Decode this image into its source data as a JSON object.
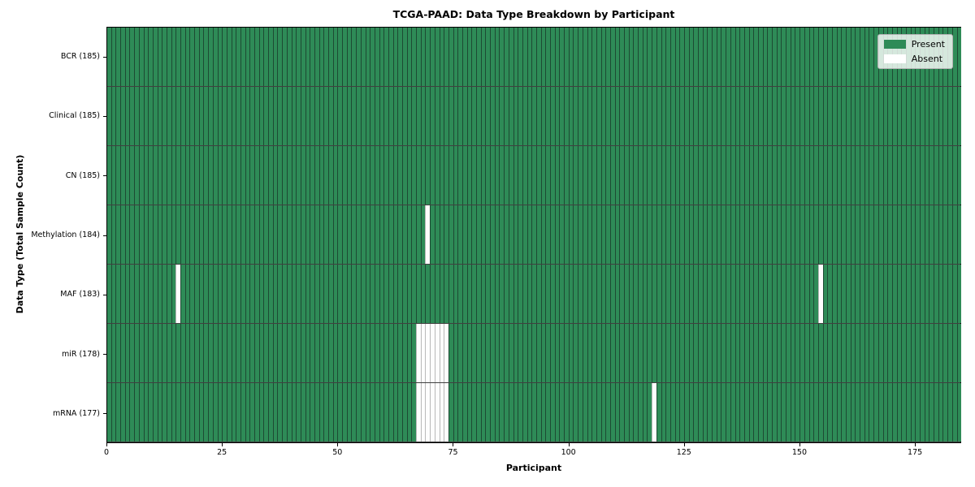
{
  "chart_data": {
    "type": "heatmap",
    "title": "TCGA-PAAD: Data Type Breakdown by Participant",
    "xlabel": "Participant",
    "ylabel": "Data Type (Total Sample Count)",
    "n_participants": 185,
    "x_ticks": [
      0,
      25,
      50,
      75,
      100,
      125,
      150,
      175
    ],
    "xlim": [
      0,
      185
    ],
    "grid": false,
    "legend_position": "upper right",
    "rows": [
      {
        "label": "BCR (185)",
        "data_type": "BCR",
        "present_count": 185,
        "absent_participants": []
      },
      {
        "label": "Clinical (185)",
        "data_type": "Clinical",
        "present_count": 185,
        "absent_participants": []
      },
      {
        "label": "CN (185)",
        "data_type": "CN",
        "present_count": 185,
        "absent_participants": []
      },
      {
        "label": "Methylation (184)",
        "data_type": "Methylation",
        "present_count": 184,
        "absent_participants": [
          69
        ]
      },
      {
        "label": "MAF (183)",
        "data_type": "MAF",
        "present_count": 183,
        "absent_participants": [
          15,
          154
        ]
      },
      {
        "label": "miR (178)",
        "data_type": "miR",
        "present_count": 178,
        "absent_participants": [
          67,
          68,
          69,
          70,
          71,
          72,
          73
        ]
      },
      {
        "label": "mRNA (177)",
        "data_type": "mRNA",
        "present_count": 177,
        "absent_participants": [
          67,
          68,
          69,
          70,
          71,
          72,
          73,
          118
        ]
      }
    ],
    "legend": [
      {
        "label": "Present",
        "color": "#2e8b57"
      },
      {
        "label": "Absent",
        "color": "#ffffff"
      }
    ],
    "colors": {
      "present_fill": "#2e8b57",
      "present_edge": "#1d4a33",
      "absent_fill": "#fdfdfd",
      "absent_edge": "#b9b9b9",
      "row_separator": "#1e1e1e",
      "axes_edge": "#000000"
    }
  }
}
